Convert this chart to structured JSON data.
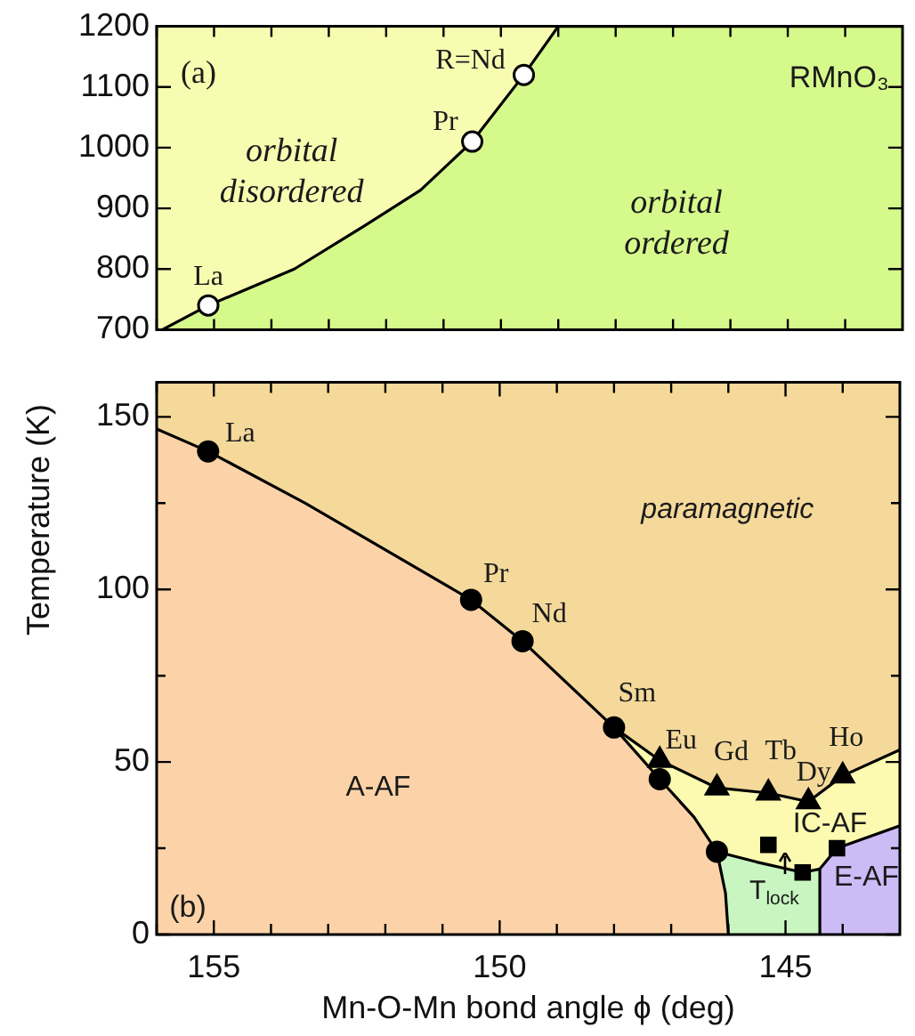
{
  "chart_data": [
    {
      "type": "line",
      "ylabel": "Temperature (K)",
      "xlim": [
        156,
        143
      ],
      "xticks": [
        {
          "value": 156,
          "label": null
        },
        {
          "value": 155,
          "label": null
        },
        {
          "value": 154,
          "label": null
        },
        {
          "value": 153,
          "label": null
        },
        {
          "value": 152,
          "label": null
        },
        {
          "value": 151,
          "label": null
        },
        {
          "value": 150,
          "label": null
        },
        {
          "value": 149,
          "label": null
        },
        {
          "value": 148,
          "label": null
        },
        {
          "value": 147,
          "label": null
        },
        {
          "value": 146,
          "label": null
        },
        {
          "value": 145,
          "label": null
        },
        {
          "value": 144,
          "label": null
        }
      ],
      "ylim": [
        700,
        1200
      ],
      "yticks": [
        700,
        800,
        900,
        1000,
        1100,
        1200
      ],
      "tick_labels": "y",
      "grid": false,
      "legend": false,
      "bands": [
        {
          "axis": "y",
          "from": 700,
          "to": 1200,
          "color": "#f7fcb0"
        }
      ],
      "series": [
        {
          "type": "area",
          "color": "#d6f98c",
          "x": [
            155.9,
            155.1,
            153.6,
            152.4,
            151.4,
            150.5,
            149.6,
            149.0,
            143
          ],
          "values": [
            700,
            740,
            800,
            870,
            930,
            1010,
            1120,
            1200,
            1200
          ]
        },
        {
          "type": "scatter",
          "marker": "circle",
          "color": "#ffffff",
          "x": [
            155.1,
            150.5,
            149.6
          ],
          "values": [
            740,
            1010,
            1120
          ]
        }
      ],
      "annotations": [
        "(a)",
        "RMnO₃",
        "orbital\ndisordered",
        "orbital\nordered",
        {
          "text": "La",
          "x": 155.1,
          "y": 740
        },
        {
          "text": "Pr",
          "x": 150.5,
          "y": 1010
        },
        {
          "text": "R=Nd",
          "x": 149.6,
          "y": 1120
        }
      ]
    },
    {
      "type": "line",
      "xlabel": "Mn-O-Mn bond angle ϕ (deg)",
      "xlim": [
        156,
        143
      ],
      "xticks": [
        {
          "value": 156,
          "label": null
        },
        {
          "value": 155,
          "label": "155"
        },
        {
          "value": 154,
          "label": null
        },
        {
          "value": 153,
          "label": null
        },
        {
          "value": 152,
          "label": null
        },
        {
          "value": 151,
          "label": null
        },
        {
          "value": 150,
          "label": "150"
        },
        {
          "value": 149,
          "label": null
        },
        {
          "value": 148,
          "label": null
        },
        {
          "value": 147,
          "label": null
        },
        {
          "value": 146,
          "label": null
        },
        {
          "value": 145,
          "label": "145"
        },
        {
          "value": 144,
          "label": null
        }
      ],
      "ylim": [
        0,
        160
      ],
      "yticks": [
        0,
        {
          "value": 25,
          "label": null
        },
        50,
        {
          "value": 75,
          "label": null
        },
        100,
        {
          "value": 125,
          "label": null
        },
        150
      ],
      "grid": false,
      "legend": false,
      "bands": [
        {
          "axis": "y",
          "from": 0,
          "to": 160,
          "color": "#f4d99a"
        }
      ],
      "series": [
        {
          "type": "area",
          "color": "#fbfab0",
          "x": [
            148,
            147.2,
            146.2,
            145.3,
            144.6,
            144.0,
            143.0
          ],
          "values": [
            60,
            50.5,
            42.5,
            41,
            38.5,
            46,
            53.5
          ]
        },
        {
          "type": "area",
          "color": "#c9f5c1",
          "x": [
            146.2,
            145.5,
            144.7,
            144.4
          ],
          "values": [
            24,
            21,
            18,
            19
          ]
        },
        {
          "type": "area",
          "color": "#fcd3a8",
          "x": [
            156,
            155.1,
            153.4,
            150.5,
            149.6,
            148,
            147.2,
            146.6,
            146.2,
            146.05,
            146.0
          ],
          "values": [
            146.5,
            140,
            125,
            97,
            85,
            60,
            45,
            34,
            24,
            12,
            0
          ]
        },
        {
          "type": "area",
          "color": "#cdbbf6",
          "x": [
            144.4,
            144.4,
            144.1,
            143.0
          ],
          "values": [
            0,
            19,
            25,
            31.5
          ]
        },
        {
          "type": "scatter",
          "marker": "circle",
          "color": "#000000",
          "x": [
            155.1,
            150.5,
            149.6,
            148,
            147.2,
            146.2
          ],
          "values": [
            140,
            97,
            85,
            60,
            45,
            24
          ]
        },
        {
          "type": "scatter",
          "marker": "triangle",
          "color": "#000000",
          "x": [
            147.2,
            146.2,
            145.3,
            144.6,
            144.0
          ],
          "values": [
            50.5,
            42.5,
            41,
            38.5,
            46
          ]
        },
        {
          "type": "scatter",
          "marker": "square",
          "color": "#000000",
          "x": [
            145.3,
            144.7,
            144.1
          ],
          "values": [
            26,
            18,
            25
          ]
        }
      ],
      "annotations": [
        "(b)",
        "paramagnetic",
        "A-AF",
        "IC-AF",
        "E-AF",
        "T$_{lock}$",
        {
          "text": "La",
          "x": 155.1,
          "y": 140
        },
        {
          "text": "Pr",
          "x": 150.5,
          "y": 97
        },
        {
          "text": "Nd",
          "x": 149.6,
          "y": 85
        },
        {
          "text": "Sm",
          "x": 148,
          "y": 60
        },
        {
          "text": "Eu",
          "x": 147.2,
          "y": 50.5
        },
        {
          "text": "Gd",
          "x": 146.2,
          "y": 42.5
        },
        {
          "text": "Tb",
          "x": 145.3,
          "y": 41
        },
        {
          "text": "Dy",
          "x": 144.6,
          "y": 38.5
        },
        {
          "text": "Ho",
          "x": 144.0,
          "y": 46
        }
      ]
    }
  ]
}
